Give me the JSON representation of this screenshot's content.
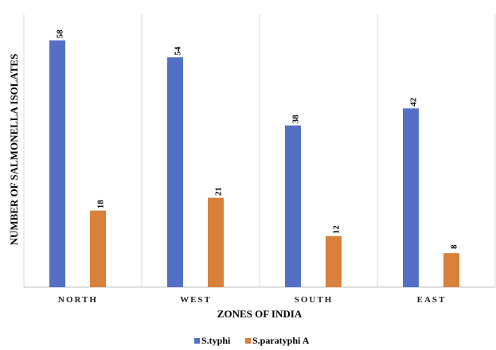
{
  "chart_data": {
    "type": "bar",
    "categories": [
      "NORTH",
      "WEST",
      "SOUTH",
      "EAST"
    ],
    "series": [
      {
        "name": "S.typhi",
        "values": [
          58,
          54,
          38,
          42
        ],
        "color": "#5470C6"
      },
      {
        "name": "S.paratyphi A",
        "values": [
          18,
          21,
          12,
          8
        ],
        "color": "#D9803A"
      }
    ],
    "xlabel": "ZONES OF INDIA",
    "ylabel": "NUMBER OF SALMONELLA ISOLATES",
    "ylim": [
      0,
      70
    ],
    "grid": "vertical separators between categories",
    "legend_position": "bottom",
    "y_tick_labels_shown": false
  }
}
